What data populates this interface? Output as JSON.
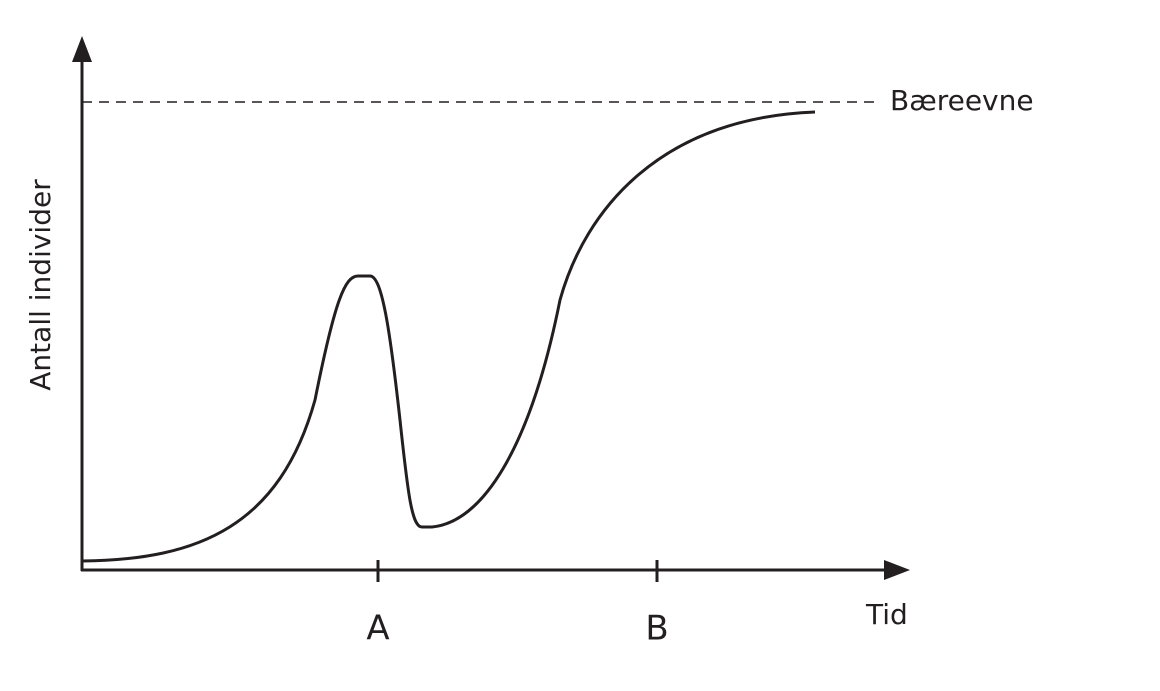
{
  "y_axis_label": "Antall individer",
  "x_axis_label": "Tid",
  "x_marks": [
    "A",
    "B"
  ],
  "carrying_capacity_label": "Bæreevne"
}
